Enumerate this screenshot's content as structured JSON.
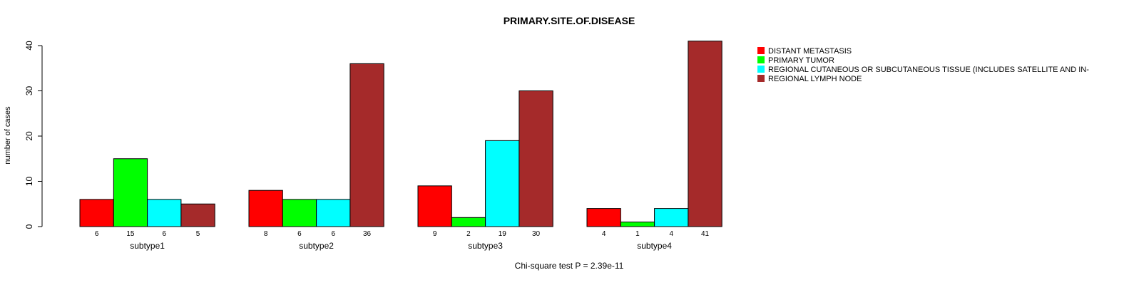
{
  "chart_data": {
    "type": "bar",
    "title": "PRIMARY.SITE.OF.DISEASE",
    "ylabel": "number of cases",
    "xlabel": "",
    "footnote": "Chi-square test P = 2.39e-11",
    "ylim": [
      0,
      40
    ],
    "yticks": [
      0,
      10,
      20,
      30,
      40
    ],
    "categories": [
      "subtype1",
      "subtype2",
      "subtype3",
      "subtype4"
    ],
    "series": [
      {
        "name": "DISTANT METASTASIS",
        "color": "#ff0000",
        "values": [
          6,
          8,
          9,
          4
        ]
      },
      {
        "name": "PRIMARY TUMOR",
        "color": "#00ff00",
        "values": [
          15,
          6,
          2,
          1
        ]
      },
      {
        "name": "REGIONAL CUTANEOUS OR SUBCUTANEOUS TISSUE (INCLUDES SATELLITE AND IN-",
        "color": "#00ffff",
        "values": [
          6,
          6,
          19,
          4
        ]
      },
      {
        "name": "REGIONAL LYMPH NODE",
        "color": "#a52a2a",
        "values": [
          5,
          36,
          30,
          41
        ]
      }
    ],
    "legend_position": "top-right",
    "grid": false
  }
}
